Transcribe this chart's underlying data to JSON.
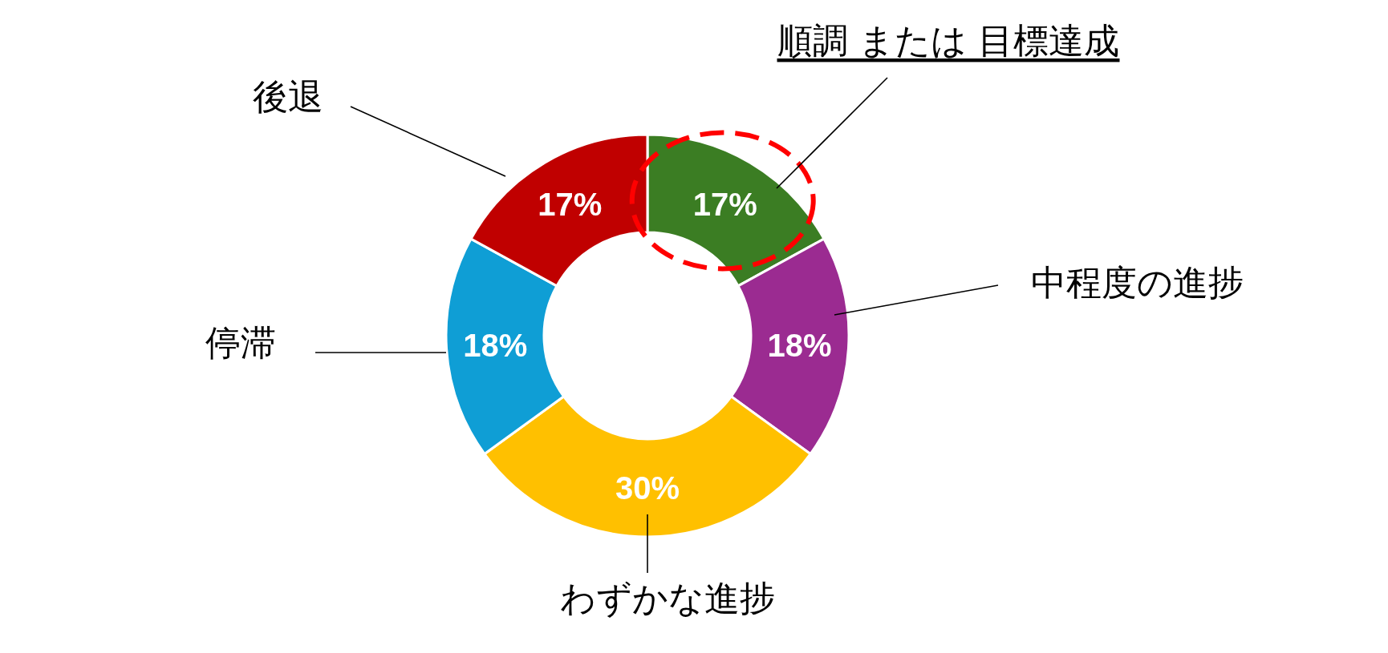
{
  "chart_data": {
    "type": "donut",
    "categories": [
      "順調 または 目標達成",
      "中程度の進捗",
      "わずかな進捗",
      "停滞",
      "後退"
    ],
    "values": [
      17,
      18,
      30,
      18,
      17
    ],
    "colors": [
      "#3b7d23",
      "#9b2b91",
      "#ffc000",
      "#0f9ed5",
      "#c00000"
    ],
    "value_labels": [
      "17%",
      "18%",
      "30%",
      "18%",
      "17%"
    ]
  }
}
